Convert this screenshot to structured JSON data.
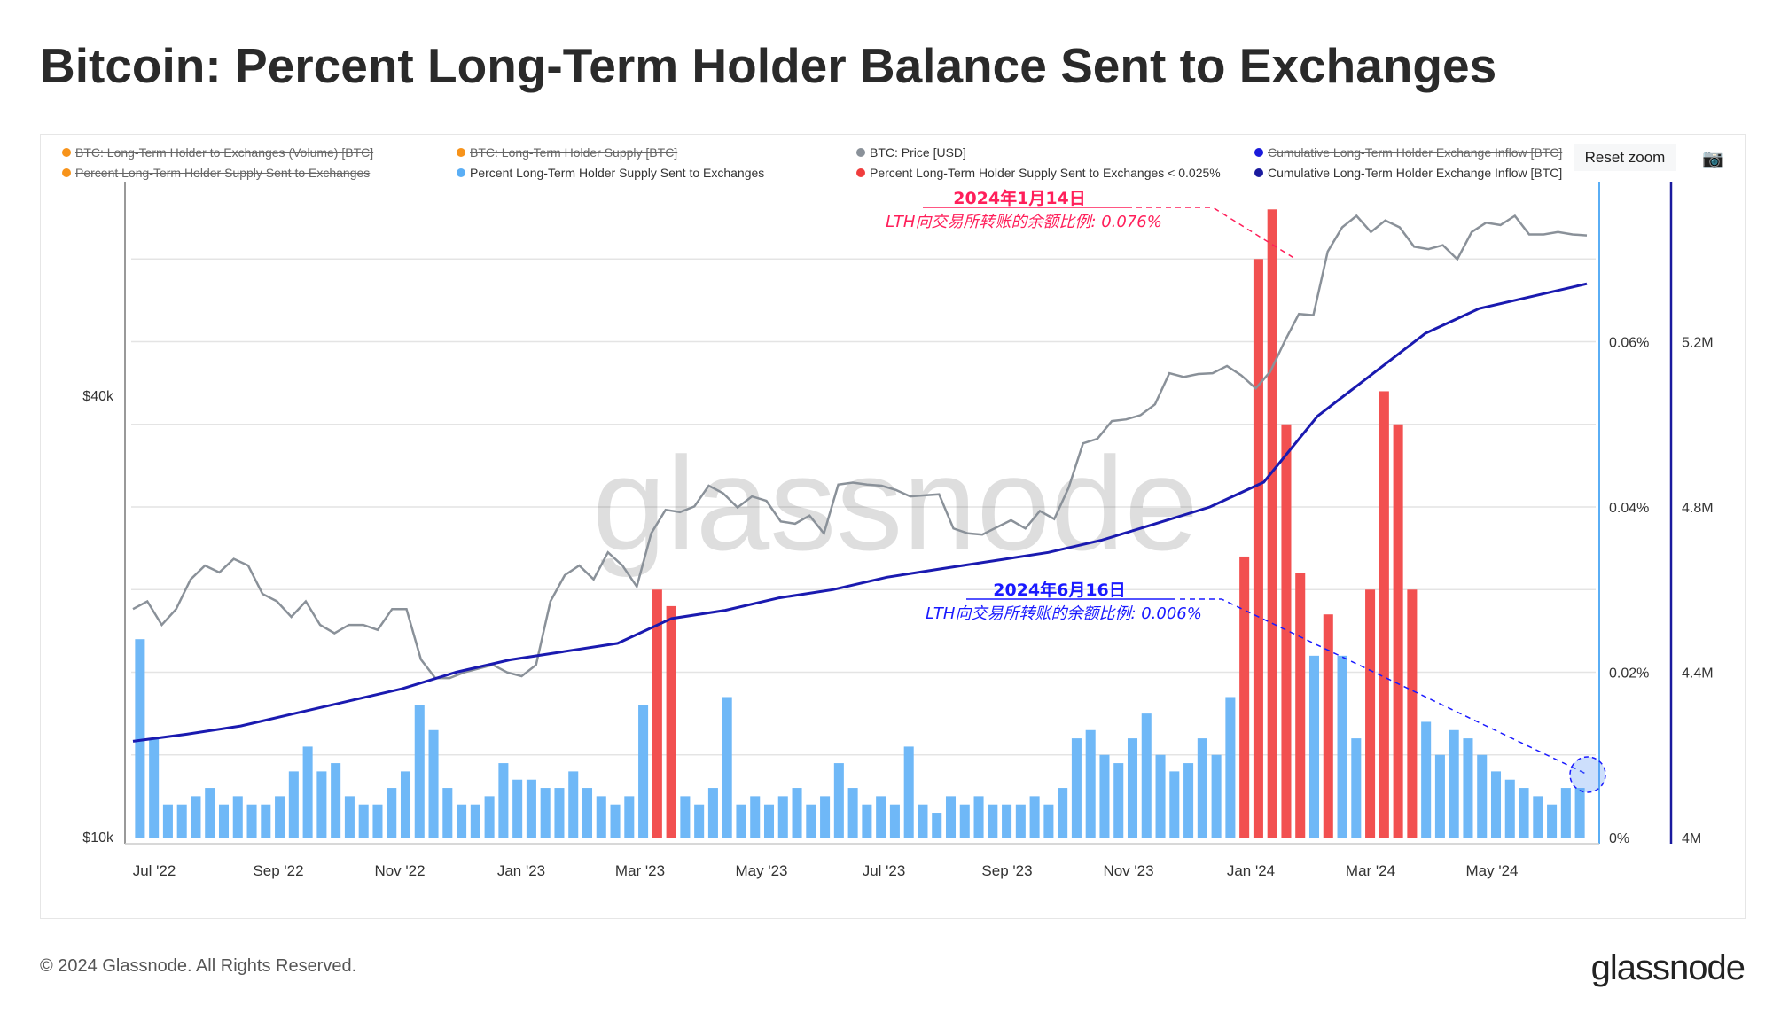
{
  "title": "Bitcoin: Percent Long-Term Holder Balance Sent to Exchanges",
  "legend": [
    {
      "label": "BTC: Long-Term Holder to Exchanges (Volume) [BTC]",
      "color": "#f7931a",
      "hidden": true
    },
    {
      "label": "BTC: Long-Term Holder Supply [BTC]",
      "color": "#f7931a",
      "hidden": true
    },
    {
      "label": "BTC: Price [USD]",
      "color": "#8a9199",
      "hidden": false
    },
    {
      "label": "Cumulative Long-Term Holder Exchange Inflow [BTC]",
      "color": "#1a1adb",
      "hidden": true
    },
    {
      "label": "Percent Long-Term Holder Supply Sent to Exchanges",
      "color": "#f7931a",
      "hidden": true
    },
    {
      "label": "Percent Long-Term Holder Supply Sent to Exchanges",
      "color": "#5aaef5",
      "hidden": false
    },
    {
      "label": "Percent Long-Term Holder Supply Sent to Exchanges < 0.025%",
      "color": "#f03c3c",
      "hidden": false
    },
    {
      "label": "Cumulative Long-Term Holder Exchange Inflow [BTC]",
      "color": "#1a1a9e",
      "hidden": false
    }
  ],
  "reset_zoom": "Reset zoom",
  "footer": "© 2024 Glassnode. All Rights Reserved.",
  "logo": "glassnode",
  "watermark": "glassnode",
  "annotations": [
    {
      "date": "2024年1月14日",
      "text": "LTH向交易所转账的余额比例: 0.076%",
      "color": "#ff1f5a"
    },
    {
      "date": "2024年6月16日",
      "text": "LTH向交易所转账的余额比例: 0.006%",
      "color": "#1a1aff"
    }
  ],
  "chart_data": {
    "type": "bar+line",
    "date_range": [
      "2022-06-22",
      "2024-06-16"
    ],
    "x_ticks": [
      "Jul '22",
      "Sep '22",
      "Nov '22",
      "Jan '23",
      "Mar '23",
      "May '23",
      "Jul '23",
      "Sep '23",
      "Nov '23",
      "Jan '24",
      "Mar '24",
      "May '24"
    ],
    "price_axis": {
      "scale": "log",
      "ticks": [
        "$10k",
        "$40k"
      ],
      "tick_values": [
        10,
        40
      ]
    },
    "pct_axis": {
      "ticks": [
        "0%",
        "0.02%",
        "0.04%",
        "0.06%"
      ],
      "tick_values": [
        0,
        0.02,
        0.04,
        0.06
      ]
    },
    "cum_axis": {
      "ticks": [
        "4M",
        "4.4M",
        "4.8M",
        "5.2M"
      ],
      "tick_values": [
        4,
        4.4,
        4.8,
        5.2
      ]
    },
    "red_threshold": 0.025,
    "price_k": [
      20.5,
      21,
      19.5,
      20.5,
      22.5,
      23.5,
      23,
      24,
      23.5,
      21.5,
      21,
      20,
      21,
      19.5,
      19,
      19.5,
      19.5,
      19.2,
      20.5,
      20.5,
      17.5,
      16.5,
      16.5,
      16.8,
      17,
      17.2,
      16.8,
      16.6,
      17.2,
      21,
      22.8,
      23.5,
      22.5,
      24.5,
      23.5,
      22,
      26,
      28,
      27.8,
      28.3,
      30.2,
      29.5,
      28.2,
      29.2,
      28.8,
      27,
      26.8,
      27.5,
      26,
      30.3,
      30.5,
      30.3,
      30.2,
      29.8,
      29.2,
      29.3,
      29.4,
      26.4,
      26,
      25.9,
      26.5,
      27.1,
      26.4,
      27.9,
      27.2,
      30,
      34.5,
      35,
      37,
      37.2,
      37.7,
      39,
      43,
      42.5,
      42.9,
      43,
      44,
      42.7,
      41,
      43.2,
      47.5,
      51.8,
      51.6,
      63,
      68,
      70.5,
      67,
      69.5,
      68,
      64,
      63.5,
      64.3,
      61.5,
      67,
      69,
      68.5,
      70.5,
      66.5,
      66.5,
      67,
      66.5,
      66.3
    ],
    "pct": [
      0.024,
      0.012,
      0.004,
      0.004,
      0.005,
      0.006,
      0.004,
      0.005,
      0.004,
      0.004,
      0.005,
      0.008,
      0.011,
      0.008,
      0.009,
      0.005,
      0.004,
      0.004,
      0.006,
      0.008,
      0.016,
      0.013,
      0.006,
      0.004,
      0.004,
      0.005,
      0.009,
      0.007,
      0.007,
      0.006,
      0.006,
      0.008,
      0.006,
      0.005,
      0.004,
      0.005,
      0.016,
      0.03,
      0.028,
      0.005,
      0.004,
      0.006,
      0.017,
      0.004,
      0.005,
      0.004,
      0.005,
      0.006,
      0.004,
      0.005,
      0.009,
      0.006,
      0.004,
      0.005,
      0.004,
      0.011,
      0.004,
      0.003,
      0.005,
      0.004,
      0.005,
      0.004,
      0.004,
      0.004,
      0.005,
      0.004,
      0.006,
      0.012,
      0.013,
      0.01,
      0.009,
      0.012,
      0.015,
      0.01,
      0.008,
      0.009,
      0.012,
      0.01,
      0.017,
      0.034,
      0.07,
      0.076,
      0.05,
      0.032,
      0.022,
      0.027,
      0.022,
      0.012,
      0.03,
      0.054,
      0.05,
      0.03,
      0.014,
      0.01,
      0.013,
      0.012,
      0.01,
      0.008,
      0.007,
      0.006,
      0.005,
      0.004,
      0.006,
      0.006
    ],
    "cum_M": [
      4.233,
      4.25,
      4.27,
      4.3,
      4.33,
      4.36,
      4.4,
      4.43,
      4.45,
      4.47,
      4.53,
      4.55,
      4.58,
      4.6,
      4.63,
      4.65,
      4.67,
      4.69,
      4.72,
      4.76,
      4.8,
      4.86,
      5.02,
      5.12,
      5.22,
      5.28,
      5.31,
      5.34
    ]
  }
}
